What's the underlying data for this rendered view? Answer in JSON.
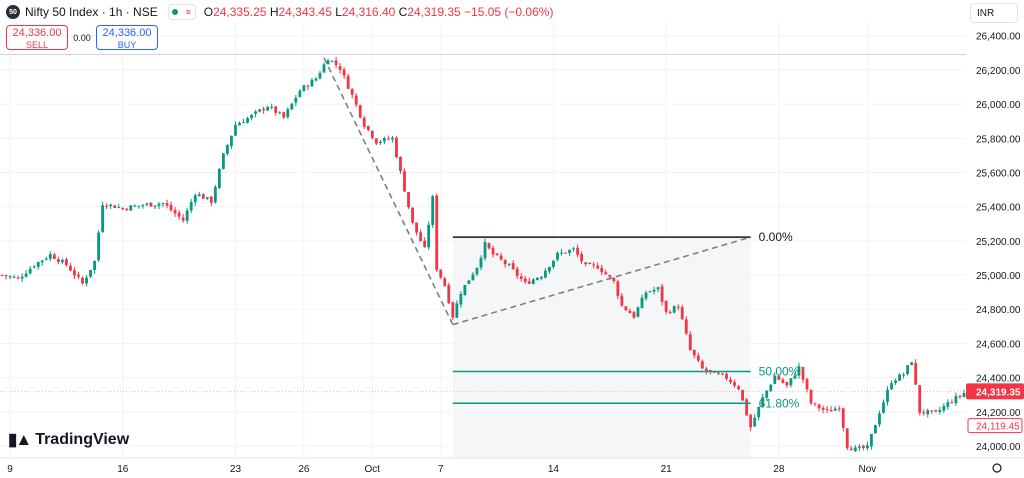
{
  "header": {
    "logo_text": "50",
    "symbol": "Nifty 50 Index · 1h · NSE",
    "ohlc": [
      {
        "k": "O",
        "v": "24,335.25"
      },
      {
        "k": "H",
        "v": "24,343.45"
      },
      {
        "k": "L",
        "v": "24,316.40"
      },
      {
        "k": "C",
        "v": "24,319.35"
      }
    ],
    "change": "−15.05 (−0.06%)"
  },
  "trade": {
    "sell_price": "24,336.00",
    "sell_label": "SELL",
    "spread": "0.00",
    "buy_price": "24,336.00",
    "buy_label": "BUY"
  },
  "currency": "INR",
  "brand": "TradingView",
  "colors": {
    "up": "#089981",
    "down": "#f23645",
    "fib": "#089981",
    "trend": "#808080"
  },
  "chart_data": {
    "type": "candlestick",
    "y_ticks": [
      "26,400.00",
      "26,200.00",
      "26,000.00",
      "25,800.00",
      "25,600.00",
      "25,400.00",
      "25,200.00",
      "25,000.00",
      "24,800.00",
      "24,600.00",
      "24,400.00",
      "24,200.00",
      "24,000.00"
    ],
    "y_tick_values": [
      26400,
      26200,
      26000,
      25800,
      25600,
      25400,
      25200,
      25000,
      24800,
      24600,
      24400,
      24200,
      24000
    ],
    "ylim": [
      23930,
      26480
    ],
    "x_ticks": [
      {
        "label": "9",
        "bar": 2
      },
      {
        "label": "16",
        "bar": 30
      },
      {
        "label": "23",
        "bar": 58
      },
      {
        "label": "26",
        "bar": 75
      },
      {
        "label": "Oct",
        "bar": 92
      },
      {
        "label": "7",
        "bar": 109
      },
      {
        "label": "14",
        "bar": 137
      },
      {
        "label": "21",
        "bar": 165
      },
      {
        "label": "28",
        "bar": 193
      },
      {
        "label": "Nov",
        "bar": 215
      }
    ],
    "bar_count": 240,
    "last_price": "24,319.35",
    "last_value": 24319.35,
    "prev_price": "24,119.45",
    "prev_value": 24119.45,
    "high_value": 26280,
    "fib": [
      {
        "label": "0.00%",
        "value": 25222
      },
      {
        "label": "50.00%",
        "value": 24436
      },
      {
        "label": "61.80%",
        "value": 24250
      }
    ],
    "close_path": [
      [
        0,
        25000
      ],
      [
        4,
        24980
      ],
      [
        8,
        25060
      ],
      [
        12,
        25120
      ],
      [
        16,
        25060
      ],
      [
        20,
        24950
      ],
      [
        23,
        25080
      ],
      [
        25,
        25420
      ],
      [
        30,
        25390
      ],
      [
        35,
        25410
      ],
      [
        40,
        25420
      ],
      [
        45,
        25320
      ],
      [
        48,
        25480
      ],
      [
        52,
        25430
      ],
      [
        55,
        25700
      ],
      [
        58,
        25880
      ],
      [
        62,
        25930
      ],
      [
        66,
        25990
      ],
      [
        70,
        25920
      ],
      [
        74,
        26080
      ],
      [
        78,
        26150
      ],
      [
        80,
        26230
      ],
      [
        81,
        26270
      ],
      [
        84,
        26210
      ],
      [
        87,
        26050
      ],
      [
        90,
        25880
      ],
      [
        93,
        25780
      ],
      [
        97,
        25800
      ],
      [
        99,
        25600
      ],
      [
        102,
        25300
      ],
      [
        105,
        25150
      ],
      [
        107,
        25450
      ],
      [
        108,
        25040
      ],
      [
        110,
        24940
      ],
      [
        112,
        24760
      ],
      [
        114,
        24900
      ],
      [
        118,
        25050
      ],
      [
        120,
        25180
      ],
      [
        122,
        25120
      ],
      [
        126,
        25050
      ],
      [
        130,
        24950
      ],
      [
        134,
        25000
      ],
      [
        138,
        25120
      ],
      [
        142,
        25150
      ],
      [
        145,
        25050
      ],
      [
        148,
        25050
      ],
      [
        152,
        24960
      ],
      [
        154,
        24820
      ],
      [
        157,
        24760
      ],
      [
        160,
        24900
      ],
      [
        163,
        24920
      ],
      [
        165,
        24780
      ],
      [
        168,
        24820
      ],
      [
        171,
        24560
      ],
      [
        174,
        24450
      ],
      [
        177,
        24420
      ],
      [
        180,
        24400
      ],
      [
        183,
        24340
      ],
      [
        186,
        24110
      ],
      [
        189,
        24280
      ],
      [
        192,
        24410
      ],
      [
        195,
        24350
      ],
      [
        198,
        24460
      ],
      [
        201,
        24250
      ],
      [
        205,
        24200
      ],
      [
        208,
        24230
      ],
      [
        210,
        24000
      ],
      [
        212,
        23980
      ],
      [
        215,
        23990
      ],
      [
        218,
        24200
      ],
      [
        221,
        24380
      ],
      [
        224,
        24420
      ],
      [
        226,
        24500
      ],
      [
        228,
        24200
      ],
      [
        232,
        24190
      ],
      [
        235,
        24250
      ],
      [
        239,
        24310
      ]
    ],
    "drawings": {
      "trend1": [
        [
          80,
          26270
        ],
        [
          112,
          24710
        ]
      ],
      "trend2": [
        [
          112,
          24710
        ],
        [
          186,
          25222
        ]
      ],
      "fib_x": [
        112,
        186
      ],
      "crosshair_value": 26290
    }
  }
}
